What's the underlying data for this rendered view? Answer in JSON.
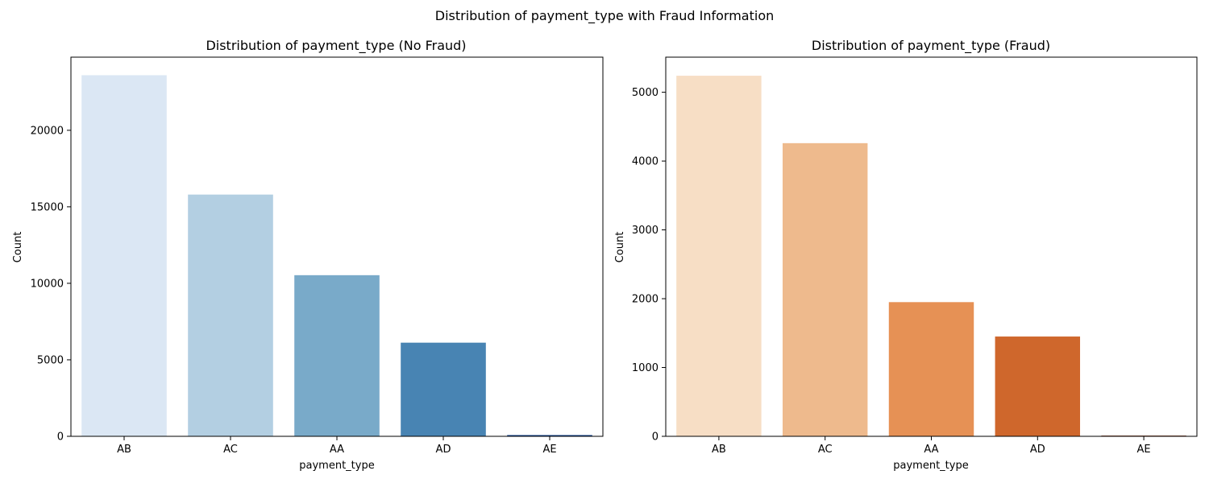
{
  "figure": {
    "suptitle": "Distribution of payment_type with Fraud Information"
  },
  "chart_data": [
    {
      "type": "bar",
      "title": "Distribution of payment_type (No Fraud)",
      "xlabel": "payment_type",
      "ylabel": "Count",
      "categories": [
        "AB",
        "AC",
        "AA",
        "AD",
        "AE"
      ],
      "values": [
        23600,
        15800,
        10530,
        6120,
        80
      ],
      "colors": [
        "#dbe7f4",
        "#b3cfe2",
        "#79aac9",
        "#4884b3",
        "#11418c"
      ],
      "ylim": [
        0,
        24780
      ],
      "yticks": [
        0,
        5000,
        10000,
        15000,
        20000
      ],
      "grid": false,
      "legend": "none"
    },
    {
      "type": "bar",
      "title": "Distribution of payment_type (Fraud)",
      "xlabel": "payment_type",
      "ylabel": "Count",
      "categories": [
        "AB",
        "AC",
        "AA",
        "AD",
        "AE"
      ],
      "values": [
        5240,
        4260,
        1950,
        1450,
        10
      ],
      "colors": [
        "#f7dec5",
        "#eeba8d",
        "#e69155",
        "#cf672c",
        "#7f2704"
      ],
      "ylim": [
        0,
        5510
      ],
      "yticks": [
        0,
        1000,
        2000,
        3000,
        4000,
        5000
      ],
      "grid": false,
      "legend": "none"
    }
  ]
}
